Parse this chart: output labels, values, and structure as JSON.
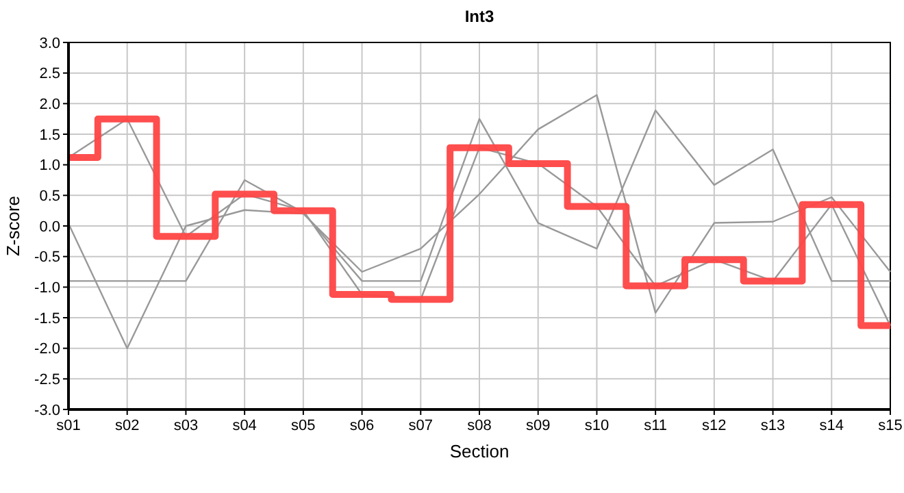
{
  "chart_data": {
    "type": "line",
    "title": "Int3",
    "xlabel": "Section",
    "ylabel": "Z-score",
    "categories": [
      "s01",
      "s02",
      "s03",
      "s04",
      "s05",
      "s06",
      "s07",
      "s08",
      "s09",
      "s10",
      "s11",
      "s12",
      "s13",
      "s14",
      "s15"
    ],
    "series": [
      {
        "color": "#999999",
        "values": [
          -0.9,
          -0.9,
          -0.9,
          0.75,
          0.22,
          -0.9,
          -0.9,
          1.75,
          0.05,
          -0.37,
          1.89,
          0.67,
          1.25,
          -0.9,
          -0.9
        ]
      },
      {
        "color": "#999999",
        "values": [
          0.04,
          -2.0,
          0.0,
          0.26,
          0.2,
          -0.75,
          -0.37,
          0.52,
          1.58,
          2.14,
          -1.42,
          0.05,
          0.07,
          0.47,
          -0.75
        ]
      },
      {
        "color": "#999999",
        "values": [
          1.12,
          1.75,
          -0.17,
          0.52,
          0.25,
          -1.12,
          -1.2,
          1.28,
          1.02,
          0.32,
          -0.98,
          -0.55,
          -0.9,
          0.35,
          -1.63
        ]
      },
      {
        "type": "step",
        "color": "#ff4444",
        "values": [
          1.12,
          1.75,
          -0.17,
          0.52,
          0.25,
          -1.12,
          -1.2,
          1.28,
          1.02,
          0.32,
          -0.98,
          -0.55,
          -0.9,
          0.35,
          -1.63
        ]
      }
    ],
    "ylim": [
      -3,
      3
    ],
    "yticks": [
      {
        "value": -3,
        "label": "-3.0"
      },
      -2.5,
      {
        "value": -2,
        "label": "-2.0"
      },
      -1.5,
      {
        "value": -1,
        "label": "-1.0"
      },
      -0.5,
      {
        "value": 0,
        "label": "0.0"
      },
      0.5,
      {
        "value": 1,
        "label": "1.0"
      },
      1.5,
      {
        "value": 2,
        "label": "2.0"
      },
      2.5,
      {
        "value": 3,
        "label": "3.0"
      }
    ],
    "grid": true
  }
}
